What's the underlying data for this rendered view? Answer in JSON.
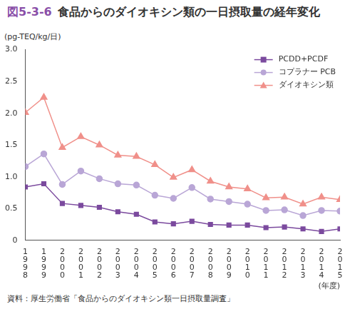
{
  "chart_data": {
    "type": "line",
    "title": "図5-3-6　食品からのダイオキシン類の一日摂取量の経年変化",
    "y_label": "(pg-TEQ/kg/日)",
    "x_label": "(年度)",
    "source": "資料：厚生労働省「食品からのダイオキシン類一日摂取量調査」",
    "categories": [
      "1998",
      "1999",
      "2000",
      "2001",
      "2002",
      "2003",
      "2004",
      "2005",
      "2006",
      "2007",
      "2008",
      "2009",
      "2010",
      "2011",
      "2012",
      "2013",
      "2014",
      "2015"
    ],
    "series": [
      {
        "name": "PCDD+PCDF",
        "color": "#7b4a9e",
        "marker": "square",
        "line_style": "solid",
        "values": [
          0.84,
          0.89,
          0.58,
          0.55,
          0.52,
          0.45,
          0.41,
          0.29,
          0.26,
          0.3,
          0.25,
          0.24,
          0.24,
          0.2,
          0.21,
          0.18,
          0.14,
          0.18
        ]
      },
      {
        "name": "コプラナー PCB",
        "color": "#b9a6d6",
        "marker": "circle",
        "line_style": "solid",
        "values": [
          1.16,
          1.36,
          0.88,
          1.09,
          0.97,
          0.89,
          0.87,
          0.71,
          0.66,
          0.83,
          0.65,
          0.61,
          0.57,
          0.47,
          0.48,
          0.39,
          0.47,
          0.46
        ]
      },
      {
        "name": "ダイオキシン類",
        "color": "#f0908a",
        "marker": "triangle",
        "line_style": "solid",
        "values": [
          2.01,
          2.25,
          1.46,
          1.63,
          1.5,
          1.34,
          1.32,
          1.19,
          0.99,
          1.11,
          0.93,
          0.84,
          0.81,
          0.67,
          0.68,
          0.57,
          0.68,
          0.64
        ]
      }
    ],
    "ylim": [
      0,
      3.0
    ],
    "yticks": [
      0,
      0.5,
      {
        "value": 1,
        "label": "1.0"
      },
      1.5,
      {
        "value": 2,
        "label": "2.0"
      },
      2.5,
      {
        "value": 3,
        "label": "3.0"
      }
    ],
    "grid": false,
    "legend": "upper right"
  }
}
